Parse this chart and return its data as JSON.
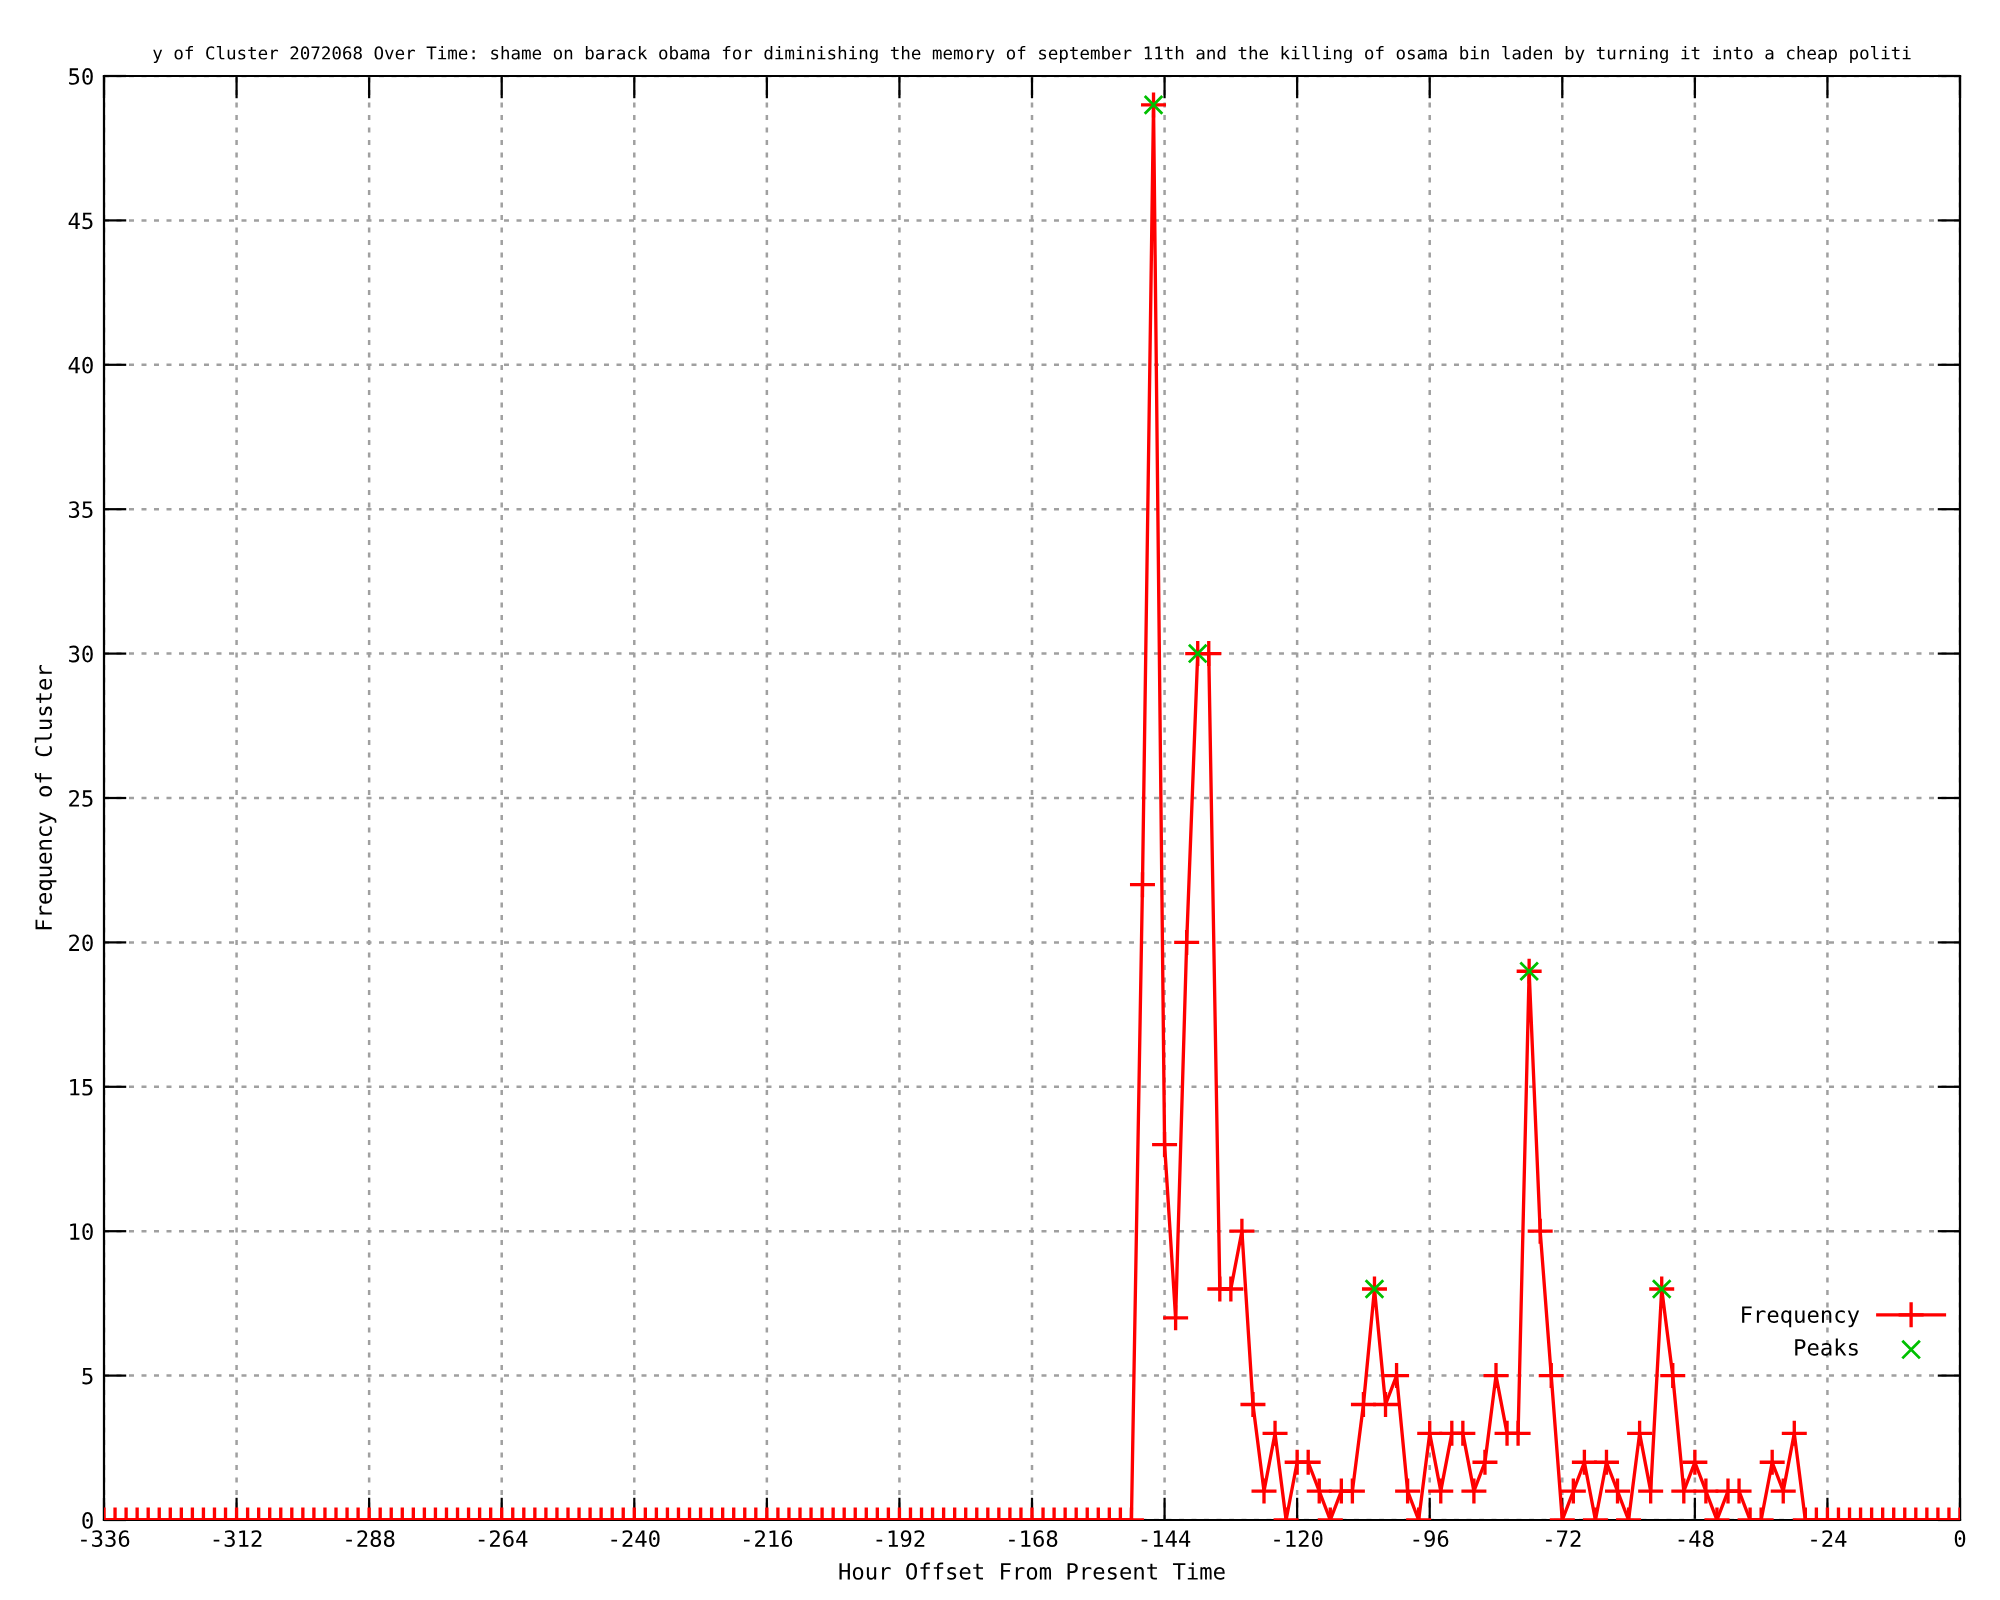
{
  "chart_data": {
    "type": "line",
    "title": "y of Cluster 2072068 Over Time: shame on barack obama for diminishing the memory of september 11th and the killing of osama bin laden by turning it into a cheap politi",
    "xlabel": "Hour Offset From Present Time",
    "ylabel": "Frequency of Cluster",
    "xlim": [
      -336,
      0
    ],
    "xticks": [
      -336,
      -312,
      -288,
      -264,
      -240,
      -216,
      -192,
      -168,
      -144,
      -120,
      -96,
      -72,
      -48,
      -24,
      0
    ],
    "ylim": [
      0,
      50
    ],
    "yticks": [
      0,
      5,
      10,
      15,
      20,
      25,
      30,
      35,
      40,
      45,
      50
    ],
    "grid": true,
    "legend": "bottom right",
    "series": [
      {
        "name": "Frequency",
        "marker": "cross",
        "line_style": "solid",
        "color": "#ff0000",
        "x": [
          -336,
          -334,
          -332,
          -330,
          -328,
          -326,
          -324,
          -322,
          -320,
          -318,
          -316,
          -314,
          -312,
          -310,
          -308,
          -306,
          -304,
          -302,
          -300,
          -298,
          -296,
          -294,
          -292,
          -290,
          -288,
          -286,
          -284,
          -282,
          -280,
          -278,
          -276,
          -274,
          -272,
          -270,
          -268,
          -266,
          -264,
          -262,
          -260,
          -258,
          -256,
          -254,
          -252,
          -250,
          -248,
          -246,
          -244,
          -242,
          -240,
          -238,
          -236,
          -234,
          -232,
          -230,
          -228,
          -226,
          -224,
          -222,
          -220,
          -218,
          -216,
          -214,
          -212,
          -210,
          -208,
          -206,
          -204,
          -202,
          -200,
          -198,
          -196,
          -194,
          -192,
          -190,
          -188,
          -186,
          -184,
          -182,
          -180,
          -178,
          -176,
          -174,
          -172,
          -170,
          -168,
          -166,
          -164,
          -162,
          -160,
          -158,
          -156,
          -154,
          -152,
          -150,
          -148,
          -146,
          -144,
          -142,
          -140,
          -138,
          -136,
          -134,
          -132,
          -130,
          -128,
          -126,
          -124,
          -122,
          -120,
          -118,
          -116,
          -114,
          -112,
          -110,
          -108,
          -106,
          -104,
          -102,
          -100,
          -98,
          -96,
          -94,
          -92,
          -90,
          -88,
          -86,
          -84,
          -82,
          -80,
          -78,
          -76,
          -74,
          -72,
          -70,
          -68,
          -66,
          -64,
          -62,
          -60,
          -58,
          -56,
          -54,
          -52,
          -50,
          -48,
          -46,
          -44,
          -42,
          -40,
          -38,
          -36,
          -34,
          -32,
          -30,
          -28,
          -26,
          -24,
          -22,
          -20,
          -18,
          -16,
          -14,
          -12,
          -10,
          -8,
          -6,
          -4,
          -2,
          0
        ],
        "values": [
          0,
          0,
          0,
          0,
          0,
          0,
          0,
          0,
          0,
          0,
          0,
          0,
          0,
          0,
          0,
          0,
          0,
          0,
          0,
          0,
          0,
          0,
          0,
          0,
          0,
          0,
          0,
          0,
          0,
          0,
          0,
          0,
          0,
          0,
          0,
          0,
          0,
          0,
          0,
          0,
          0,
          0,
          0,
          0,
          0,
          0,
          0,
          0,
          0,
          0,
          0,
          0,
          0,
          0,
          0,
          0,
          0,
          0,
          0,
          0,
          0,
          0,
          0,
          0,
          0,
          0,
          0,
          0,
          0,
          0,
          0,
          0,
          0,
          0,
          0,
          0,
          0,
          0,
          0,
          0,
          0,
          0,
          0,
          0,
          0,
          0,
          0,
          0,
          0,
          0,
          0,
          0,
          0,
          0,
          22,
          49,
          13,
          7,
          20,
          30,
          30,
          8,
          8,
          10,
          4,
          1,
          3,
          0,
          2,
          2,
          1,
          0,
          1,
          1,
          4,
          8,
          4,
          5,
          1,
          0,
          3,
          1,
          3,
          3,
          1,
          2,
          5,
          3,
          3,
          19,
          10,
          5,
          0,
          1,
          2,
          0,
          2,
          1,
          0,
          3,
          1,
          8,
          5,
          1,
          2,
          1,
          0,
          1,
          1,
          0,
          0,
          2,
          1,
          3,
          0,
          0,
          0,
          0,
          0,
          0,
          0,
          0,
          0,
          0,
          0,
          0,
          0,
          0,
          0
        ]
      },
      {
        "name": "Peaks",
        "type": "scatter",
        "marker": "cross",
        "color": "#00c000",
        "x": [
          -146,
          -138,
          -106,
          -78,
          -54
        ],
        "values": [
          49,
          30,
          8,
          19,
          8
        ]
      }
    ]
  }
}
